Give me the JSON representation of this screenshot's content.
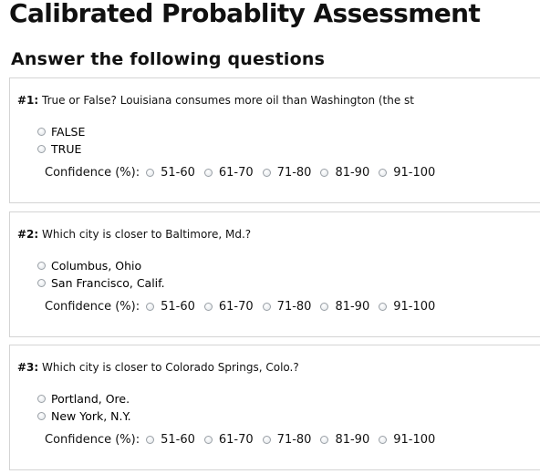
{
  "page": {
    "title": "Calibrated Probablity Assessment",
    "subtitle": "Answer the following questions"
  },
  "confidence": {
    "label": "Confidence (%):",
    "options": [
      "51-60",
      "61-70",
      "71-80",
      "81-90",
      "91-100"
    ]
  },
  "questions": [
    {
      "number": "#1:",
      "text": " True or False? Louisiana consumes more oil than Washington (the st",
      "options": [
        "FALSE",
        "TRUE"
      ]
    },
    {
      "number": "#2:",
      "text": " Which city is closer to Baltimore, Md.?",
      "options": [
        "Columbus, Ohio",
        "San Francisco, Calif."
      ]
    },
    {
      "number": "#3:",
      "text": " Which city is closer to Colorado Springs, Colo.?",
      "options": [
        "Portland, Ore.",
        "New York, N.Y."
      ]
    }
  ]
}
